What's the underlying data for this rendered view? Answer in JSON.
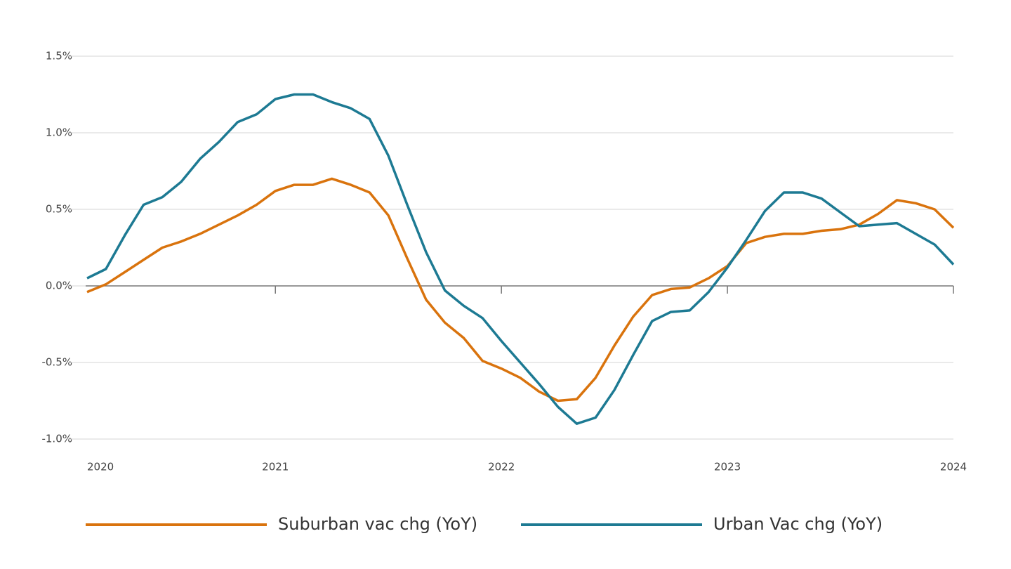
{
  "chart_data": {
    "type": "line",
    "categories": [
      "2020",
      null,
      null,
      null,
      null,
      null,
      null,
      null,
      null,
      null,
      "2021",
      null,
      null,
      null,
      null,
      null,
      null,
      null,
      null,
      null,
      null,
      null,
      "2022",
      null,
      null,
      null,
      null,
      null,
      null,
      null,
      null,
      null,
      null,
      null,
      "2023",
      null,
      null,
      null,
      null,
      null,
      null,
      null,
      null,
      null,
      null,
      null,
      "2024"
    ],
    "series": [
      {
        "name": "Suburban vac chg (YoY)",
        "color": "#d9730d",
        "values": [
          -0.04,
          0.01,
          0.09,
          0.17,
          0.25,
          0.29,
          0.34,
          0.4,
          0.46,
          0.53,
          0.62,
          0.66,
          0.66,
          0.7,
          0.66,
          0.61,
          0.46,
          0.18,
          -0.09,
          -0.24,
          -0.34,
          -0.49,
          -0.54,
          -0.6,
          -0.69,
          -0.75,
          -0.74,
          -0.6,
          -0.39,
          -0.2,
          -0.06,
          -0.02,
          -0.01,
          0.05,
          0.13,
          0.28,
          0.32,
          0.34,
          0.34,
          0.36,
          0.37,
          0.4,
          0.47,
          0.56,
          0.54,
          0.5,
          0.38
        ]
      },
      {
        "name": "Urban Vac chg (YoY)",
        "color": "#1d7a93",
        "values": [
          0.05,
          0.11,
          0.33,
          0.53,
          0.58,
          0.68,
          0.83,
          0.94,
          1.07,
          1.12,
          1.22,
          1.25,
          1.25,
          1.2,
          1.16,
          1.09,
          0.85,
          0.53,
          0.22,
          -0.03,
          -0.13,
          -0.21,
          -0.36,
          -0.5,
          -0.64,
          -0.79,
          -0.9,
          -0.86,
          -0.68,
          -0.45,
          -0.23,
          -0.17,
          -0.16,
          -0.04,
          0.12,
          0.3,
          0.49,
          0.61,
          0.61,
          0.57,
          0.48,
          0.39,
          0.4,
          0.41,
          0.34,
          0.27,
          0.14
        ]
      }
    ],
    "ylim": [
      -1.0,
      1.5
    ],
    "yticks": [
      {
        "value": -1.0,
        "label": "-1.0%"
      },
      {
        "value": -0.5,
        "label": "-0.5%"
      },
      {
        "value": 0,
        "label": "0.0%"
      },
      {
        "value": 0.5,
        "label": "0.5%"
      },
      {
        "value": 1.0,
        "label": "1.0%"
      },
      {
        "value": 1.5,
        "label": "1.5%"
      }
    ],
    "grid": true,
    "legend": "bottom"
  }
}
